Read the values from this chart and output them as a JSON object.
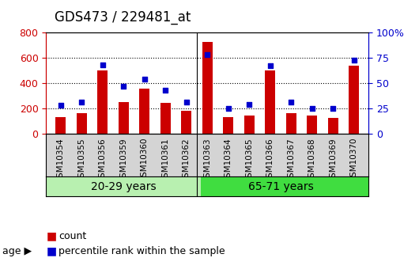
{
  "title": "GDS473 / 229481_at",
  "categories": [
    "GSM10354",
    "GSM10355",
    "GSM10356",
    "GSM10359",
    "GSM10360",
    "GSM10361",
    "GSM10362",
    "GSM10363",
    "GSM10364",
    "GSM10365",
    "GSM10366",
    "GSM10367",
    "GSM10368",
    "GSM10369",
    "GSM10370"
  ],
  "counts": [
    130,
    160,
    500,
    250,
    355,
    245,
    180,
    730,
    130,
    140,
    500,
    160,
    140,
    120,
    540
  ],
  "percentile_ranks": [
    28,
    31,
    68,
    47,
    54,
    43,
    31,
    78,
    25,
    29,
    67,
    31,
    25,
    25,
    73
  ],
  "group1_label": "20-29 years",
  "group2_label": "65-71 years",
  "group1_count": 7,
  "group2_count": 8,
  "left_yaxis_label": "",
  "left_ylim": [
    0,
    800
  ],
  "right_ylim": [
    0,
    100
  ],
  "left_yticks": [
    0,
    200,
    400,
    600,
    800
  ],
  "right_yticks": [
    0,
    25,
    50,
    75,
    100
  ],
  "right_yticklabels": [
    "0",
    "25",
    "50",
    "75",
    "100%"
  ],
  "left_tick_color": "#cc0000",
  "right_tick_color": "#0000cc",
  "bar_color": "#cc0000",
  "marker_color": "#0000cc",
  "group1_bg": "#b0f0b0",
  "group2_bg": "#40dd40",
  "age_label_bg": "#c0c0c0",
  "tick_bg": "#d0d0d0",
  "legend_count_color": "#cc0000",
  "legend_pct_color": "#0000cc",
  "bar_width": 0.5,
  "title_fontsize": 12,
  "axis_fontsize": 9,
  "legend_fontsize": 9,
  "group_label_fontsize": 10
}
